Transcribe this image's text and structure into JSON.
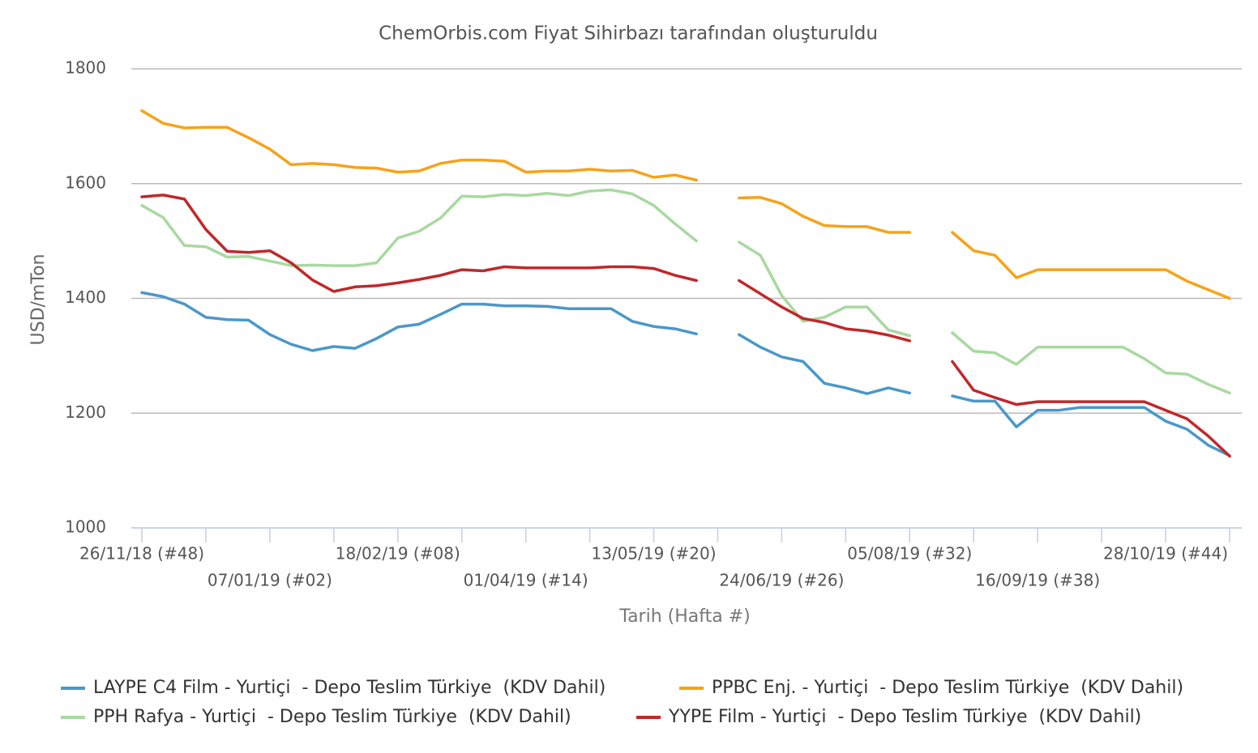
{
  "chart_data": {
    "type": "line",
    "title": "ChemOrbis.com Fiyat Sihirbazı tarafından oluşturuldu",
    "y_label": "USD/mTon",
    "x_label": "Tarih (Hafta #)",
    "categories": [
      "26/11/18 (#48)",
      null,
      null,
      null,
      null,
      null,
      "07/01/19 (#02)",
      null,
      null,
      null,
      null,
      null,
      "18/02/19 (#08)",
      null,
      null,
      null,
      null,
      null,
      "01/04/19 (#14)",
      null,
      null,
      null,
      null,
      null,
      "13/05/19 (#20)",
      null,
      null,
      null,
      null,
      null,
      "24/06/19 (#26)",
      null,
      null,
      null,
      null,
      null,
      "05/08/19 (#32)",
      null,
      null,
      null,
      null,
      null,
      "16/09/19 (#38)",
      null,
      null,
      null,
      null,
      null,
      "28/10/19 (#44)",
      null,
      null,
      null
    ],
    "ylim": [
      1000,
      1800
    ],
    "yticks": [
      1000,
      1200,
      1400,
      1600,
      1800
    ],
    "grid": true,
    "series": [
      {
        "name": "LAYPE C4 Film - Yurtiçi  - Depo Teslim Türkiye  (KDV Dahil)",
        "color": "#4a98c9",
        "values": [
          1410,
          1403,
          1390,
          1367,
          1363,
          1362,
          1337,
          1320,
          1309,
          1316,
          1313,
          1330,
          1350,
          1355,
          1372,
          1390,
          1390,
          1387,
          1387,
          1386,
          1382,
          1382,
          1382,
          1360,
          1351,
          1347,
          1338,
          null,
          1337,
          1315,
          1298,
          1290,
          1252,
          1244,
          1234,
          1244,
          1235,
          null,
          1230,
          1221,
          1221,
          1176,
          1205,
          1205,
          1210,
          1210,
          1210,
          1210,
          1186,
          1172,
          1144,
          1126
        ]
      },
      {
        "name": "PPBC Enj. - Yurtiçi  - Depo Teslim Türkiye  (KDV Dahil)",
        "color": "#f5a31a",
        "values": [
          1727,
          1705,
          1697,
          1698,
          1698,
          1680,
          1660,
          1633,
          1635,
          1633,
          1628,
          1627,
          1620,
          1622,
          1635,
          1641,
          1641,
          1639,
          1620,
          1622,
          1622,
          1625,
          1622,
          1623,
          1611,
          1615,
          1606,
          null,
          1575,
          1576,
          1565,
          1543,
          1527,
          1525,
          1525,
          1515,
          1515,
          null,
          1515,
          1483,
          1475,
          1436,
          1450,
          1450,
          1450,
          1450,
          1450,
          1450,
          1450,
          1430,
          1415,
          1400
        ]
      },
      {
        "name": "PPH Rafya - Yurtiçi  - Depo Teslim Türkiye  (KDV Dahil)",
        "color": "#a8d9a0",
        "values": [
          1562,
          1541,
          1492,
          1490,
          1472,
          1473,
          1465,
          1457,
          1458,
          1457,
          1457,
          1462,
          1505,
          1517,
          1540,
          1578,
          1577,
          1581,
          1579,
          1583,
          1579,
          1587,
          1589,
          1582,
          1562,
          1530,
          1500,
          null,
          1498,
          1475,
          1405,
          1360,
          1367,
          1385,
          1385,
          1345,
          1335,
          null,
          1340,
          1308,
          1305,
          1285,
          1315,
          1315,
          1315,
          1315,
          1315,
          1295,
          1270,
          1268,
          1250,
          1235
        ]
      },
      {
        "name": "YYPE Film - Yurtiçi  - Depo Teslim Türkiye  (KDV Dahil)",
        "color": "#c0282a",
        "values": [
          1577,
          1580,
          1573,
          1520,
          1482,
          1480,
          1483,
          1462,
          1432,
          1412,
          1420,
          1422,
          1427,
          1433,
          1440,
          1450,
          1448,
          1455,
          1453,
          1453,
          1453,
          1453,
          1455,
          1455,
          1452,
          1440,
          1431,
          null,
          1431,
          1408,
          1385,
          1365,
          1358,
          1347,
          1343,
          1336,
          1326,
          null,
          1290,
          1240,
          1227,
          1215,
          1220,
          1220,
          1220,
          1220,
          1220,
          1220,
          1205,
          1190,
          1160,
          1125
        ]
      }
    ]
  }
}
